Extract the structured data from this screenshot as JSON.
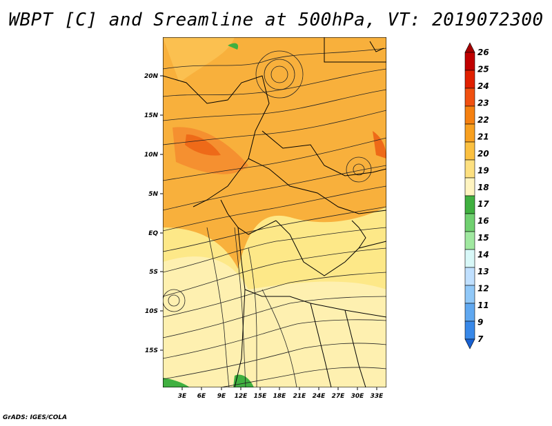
{
  "title": "WBPT [C] and Sreamline at 500hPa, VT: 2019072300",
  "credit": "GrADS: IGES/COLA",
  "map": {
    "lat_labels": [
      "20N",
      "15N",
      "10N",
      "5N",
      "EQ",
      "5S",
      "10S",
      "15S"
    ],
    "lon_labels": [
      "3E",
      "6E",
      "9E",
      "12E",
      "15E",
      "18E",
      "21E",
      "24E",
      "27E",
      "30E",
      "33E"
    ]
  },
  "colorbar": {
    "labels": [
      "26",
      "25",
      "24",
      "23",
      "22",
      "21",
      "20",
      "19",
      "18",
      "17",
      "16",
      "15",
      "14",
      "13",
      "12",
      "11",
      "9",
      "7"
    ],
    "colors": [
      "#a50000",
      "#c00000",
      "#e02000",
      "#f05010",
      "#f58010",
      "#f8a020",
      "#fbc040",
      "#fde080",
      "#fff4c0",
      "#40b040",
      "#70d070",
      "#a0e8a0",
      "#d8f8f8",
      "#c0e0ff",
      "#90c8f8",
      "#60a8f0",
      "#3888e8",
      "#1860d0"
    ]
  }
}
